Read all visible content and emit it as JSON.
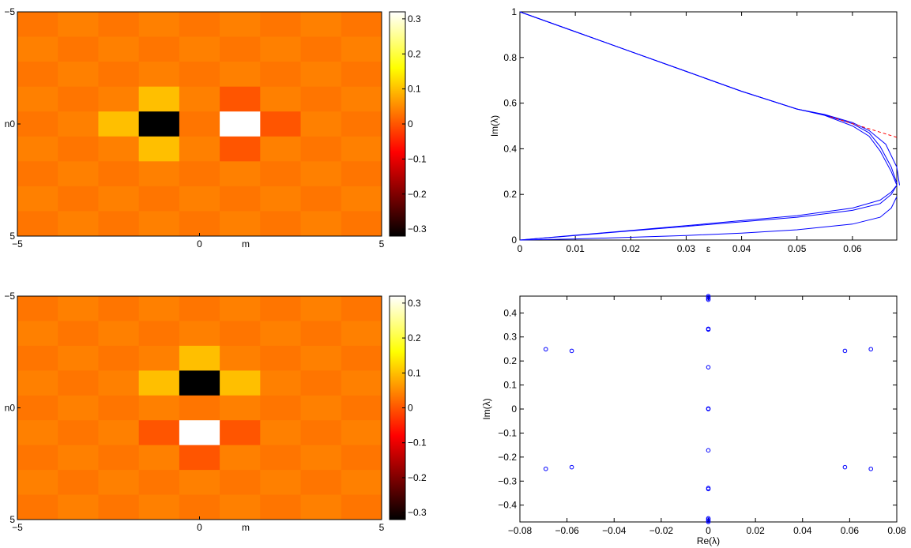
{
  "chart_data": [
    {
      "type": "heatmap",
      "panel": "top-left",
      "xlabel": "m",
      "ylabel": "n",
      "xlim": [
        -5,
        5
      ],
      "ylim": [
        -5,
        5
      ],
      "y_reversed": true,
      "xticks": [
        "-5",
        "0",
        "5"
      ],
      "yticks": [
        "-5",
        "0",
        "5"
      ],
      "colorbar": {
        "range": [
          -0.32,
          0.32
        ],
        "ticks": [
          "0.3",
          "0.2",
          "0.1",
          "0",
          "-0.1",
          "-0.2",
          "-0.3"
        ]
      },
      "grid_size": 9,
      "background_values": [
        0.03,
        0.04
      ],
      "cells": [
        {
          "m": -1,
          "n": 0,
          "value": -0.32
        },
        {
          "m": 1,
          "n": 0,
          "value": 0.32
        },
        {
          "m": -1,
          "n": -1,
          "value": 0.1
        },
        {
          "m": -1,
          "n": 1,
          "value": 0.1
        },
        {
          "m": -2,
          "n": 0,
          "value": 0.1
        },
        {
          "m": 1,
          "n": -1,
          "value": 0.0
        },
        {
          "m": 1,
          "n": 1,
          "value": 0.0
        },
        {
          "m": 2,
          "n": 0,
          "value": 0.0
        }
      ]
    },
    {
      "type": "line",
      "panel": "top-right",
      "xlabel": "ε",
      "ylabel": "Im(λ)",
      "xlim": [
        0,
        0.068
      ],
      "ylim": [
        0,
        1
      ],
      "xticks": [
        "0",
        "0.01",
        "0.02",
        "0.03",
        "0.04",
        "0.05",
        "0.06"
      ],
      "yticks": [
        "0",
        "0.2",
        "0.4",
        "0.6",
        "0.8",
        "1"
      ],
      "series": [
        {
          "color": "#0000ff",
          "style": "solid",
          "points": [
            [
              0,
              1
            ],
            [
              0.01,
              0.913
            ],
            [
              0.02,
              0.826
            ],
            [
              0.03,
              0.739
            ],
            [
              0.04,
              0.652
            ],
            [
              0.05,
              0.574
            ],
            [
              0.055,
              0.546
            ],
            [
              0.06,
              0.5
            ],
            [
              0.063,
              0.455
            ],
            [
              0.065,
              0.39
            ],
            [
              0.067,
              0.3
            ],
            [
              0.068,
              0.24
            ]
          ]
        },
        {
          "color": "#0000ff",
          "style": "solid",
          "points": [
            [
              0,
              1
            ],
            [
              0.01,
              0.913
            ],
            [
              0.02,
              0.826
            ],
            [
              0.03,
              0.739
            ],
            [
              0.04,
              0.652
            ],
            [
              0.05,
              0.574
            ],
            [
              0.055,
              0.548
            ],
            [
              0.06,
              0.51
            ],
            [
              0.063,
              0.47
            ],
            [
              0.065,
              0.41
            ],
            [
              0.067,
              0.32
            ],
            [
              0.068,
              0.25
            ]
          ]
        },
        {
          "color": "#0000ff",
          "style": "solid",
          "points": [
            [
              0,
              1
            ],
            [
              0.01,
              0.913
            ],
            [
              0.02,
              0.826
            ],
            [
              0.03,
              0.739
            ],
            [
              0.04,
              0.652
            ],
            [
              0.05,
              0.574
            ],
            [
              0.055,
              0.55
            ],
            [
              0.06,
              0.515
            ],
            [
              0.063,
              0.48
            ],
            [
              0.066,
              0.42
            ],
            [
              0.068,
              0.32
            ],
            [
              0.0685,
              0.24
            ]
          ]
        },
        {
          "color": "#0000ff",
          "style": "solid",
          "points": [
            [
              0,
              0
            ],
            [
              0.01,
              0.02
            ],
            [
              0.02,
              0.04
            ],
            [
              0.03,
              0.06
            ],
            [
              0.04,
              0.08
            ],
            [
              0.05,
              0.1
            ],
            [
              0.06,
              0.13
            ],
            [
              0.065,
              0.16
            ],
            [
              0.067,
              0.2
            ],
            [
              0.068,
              0.24
            ]
          ]
        },
        {
          "color": "#0000ff",
          "style": "solid",
          "points": [
            [
              0,
              0
            ],
            [
              0.01,
              0.021
            ],
            [
              0.02,
              0.042
            ],
            [
              0.03,
              0.063
            ],
            [
              0.04,
              0.085
            ],
            [
              0.05,
              0.107
            ],
            [
              0.06,
              0.14
            ],
            [
              0.065,
              0.175
            ],
            [
              0.067,
              0.21
            ],
            [
              0.068,
              0.24
            ]
          ]
        },
        {
          "color": "#0000ff",
          "style": "solid",
          "points": [
            [
              0,
              0
            ],
            [
              0.01,
              0.005
            ],
            [
              0.02,
              0.012
            ],
            [
              0.03,
              0.02
            ],
            [
              0.04,
              0.03
            ],
            [
              0.05,
              0.045
            ],
            [
              0.06,
              0.07
            ],
            [
              0.065,
              0.1
            ],
            [
              0.067,
              0.14
            ],
            [
              0.068,
              0.19
            ]
          ]
        },
        {
          "color": "#ff0000",
          "style": "dashed",
          "points": [
            [
              0.056,
              0.54
            ],
            [
              0.068,
              0.45
            ]
          ]
        }
      ]
    },
    {
      "type": "heatmap",
      "panel": "bottom-left",
      "xlabel": "m",
      "ylabel": "n",
      "xlim": [
        -5,
        5
      ],
      "ylim": [
        -5,
        5
      ],
      "y_reversed": true,
      "xticks": [
        "-5",
        "0",
        "5"
      ],
      "yticks": [
        "-5",
        "0",
        "5"
      ],
      "colorbar": {
        "range": [
          -0.32,
          0.32
        ],
        "ticks": [
          "0.3",
          "0.2",
          "0.1",
          "0",
          "-0.1",
          "-0.2",
          "-0.3"
        ]
      },
      "grid_size": 9,
      "background_values": [
        0.03,
        0.04
      ],
      "cells": [
        {
          "m": 0,
          "n": -1,
          "value": -0.32
        },
        {
          "m": 0,
          "n": 1,
          "value": 0.32
        },
        {
          "m": 0,
          "n": -2,
          "value": 0.1
        },
        {
          "m": -1,
          "n": -1,
          "value": 0.1
        },
        {
          "m": 1,
          "n": -1,
          "value": 0.1
        },
        {
          "m": 0,
          "n": 2,
          "value": 0.0
        },
        {
          "m": -1,
          "n": 1,
          "value": 0.0
        },
        {
          "m": 1,
          "n": 1,
          "value": 0.0
        }
      ]
    },
    {
      "type": "scatter",
      "panel": "bottom-right",
      "xlabel": "Re(λ)",
      "ylabel": "Im(λ)",
      "xlim": [
        -0.08,
        0.08
      ],
      "ylim": [
        -0.47,
        0.47
      ],
      "xticks": [
        "-0.08",
        "-0.06",
        "-0.04",
        "-0.02",
        "0",
        "0.02",
        "0.04",
        "0.06",
        "0.08"
      ],
      "yticks": [
        "0.4",
        "0.3",
        "0.2",
        "0.1",
        "0",
        "-0.1",
        "-0.2",
        "-0.3",
        "-0.4"
      ],
      "color": "#0000ff",
      "points": [
        [
          -0.069,
          0.249
        ],
        [
          -0.058,
          0.242
        ],
        [
          0.058,
          0.242
        ],
        [
          0.069,
          0.249
        ],
        [
          -0.069,
          -0.249
        ],
        [
          -0.058,
          -0.242
        ],
        [
          0.058,
          -0.242
        ],
        [
          0.069,
          -0.249
        ],
        [
          0,
          0.46
        ],
        [
          0,
          0.465
        ],
        [
          0,
          0.47
        ],
        [
          0,
          0.455
        ],
        [
          0,
          0.331
        ],
        [
          0,
          0.334
        ],
        [
          0,
          0.174
        ],
        [
          0,
          0.0
        ],
        [
          0,
          0.002
        ],
        [
          0,
          -0.172
        ],
        [
          0,
          -0.329
        ],
        [
          0,
          -0.333
        ],
        [
          0,
          -0.455
        ],
        [
          0,
          -0.46
        ],
        [
          0,
          -0.465
        ],
        [
          0,
          -0.47
        ]
      ]
    }
  ]
}
